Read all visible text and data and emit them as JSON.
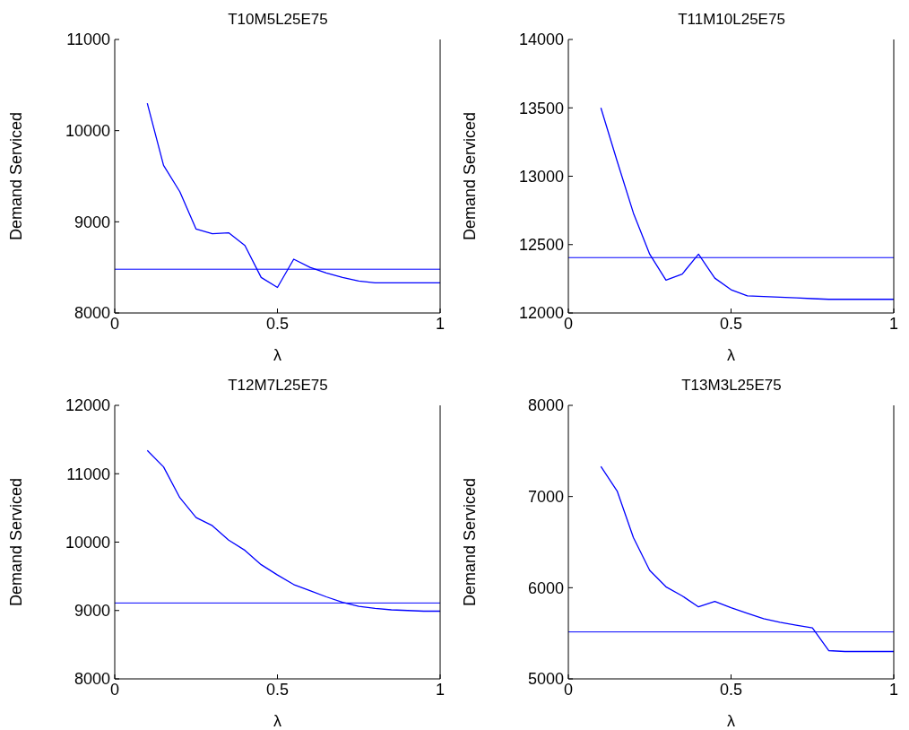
{
  "chart_data": [
    {
      "type": "line",
      "title": "T10M5L25E75",
      "xlabel": "λ",
      "ylabel": "Demand Serviced",
      "x": [
        0.1,
        0.15,
        0.2,
        0.25,
        0.3,
        0.35,
        0.4,
        0.45,
        0.5,
        0.55,
        0.6,
        0.65,
        0.7,
        0.75,
        0.8,
        0.85,
        0.9,
        0.95,
        1
      ],
      "series": [
        {
          "color": "#0000ff",
          "values": [
            10300,
            9620,
            9330,
            8920,
            8870,
            8880,
            8740,
            8390,
            8280,
            8590,
            8500,
            8440,
            8390,
            8350,
            8330,
            8330,
            8330,
            8330,
            8330
          ]
        }
      ],
      "ref_lines": [
        {
          "axis": "y",
          "value": 8480,
          "color": "#0000ff"
        }
      ],
      "xlim": [
        0,
        1
      ],
      "xticks": [
        0,
        0.5,
        1
      ],
      "ylim": [
        8000,
        11000
      ],
      "yticks": [
        8000,
        9000,
        10000,
        11000
      ],
      "grid": false,
      "legend": false,
      "marker": "none",
      "line_style": "solid"
    },
    {
      "type": "line",
      "title": "T11M10L25E75",
      "xlabel": "λ",
      "ylabel": "Demand Serviced",
      "x": [
        0.1,
        0.15,
        0.2,
        0.25,
        0.3,
        0.35,
        0.4,
        0.45,
        0.5,
        0.55,
        0.6,
        0.65,
        0.7,
        0.75,
        0.8,
        0.85,
        0.9,
        0.95,
        1
      ],
      "series": [
        {
          "color": "#0000ff",
          "values": [
            13500,
            13110,
            12730,
            12430,
            12240,
            12285,
            12430,
            12255,
            12170,
            12125,
            12120,
            12115,
            12110,
            12105,
            12100,
            12100,
            12100,
            12100,
            12100
          ]
        }
      ],
      "ref_lines": [
        {
          "axis": "y",
          "value": 12405,
          "color": "#0000ff"
        }
      ],
      "xlim": [
        0,
        1
      ],
      "xticks": [
        0,
        0.5,
        1
      ],
      "ylim": [
        12000,
        14000
      ],
      "yticks": [
        12000,
        12500,
        13000,
        13500,
        14000
      ],
      "grid": false,
      "legend": false,
      "marker": "none",
      "line_style": "solid"
    },
    {
      "type": "line",
      "title": "T12M7L25E75",
      "xlabel": "λ",
      "ylabel": "Demand Serviced",
      "x": [
        0.1,
        0.15,
        0.2,
        0.25,
        0.3,
        0.35,
        0.4,
        0.45,
        0.5,
        0.55,
        0.6,
        0.65,
        0.7,
        0.75,
        0.8,
        0.85,
        0.9,
        0.95,
        1
      ],
      "series": [
        {
          "color": "#0000ff",
          "values": [
            11340,
            11100,
            10650,
            10360,
            10240,
            10030,
            9880,
            9670,
            9520,
            9380,
            9290,
            9200,
            9120,
            9060,
            9030,
            9010,
            9000,
            8990,
            8990
          ]
        }
      ],
      "ref_lines": [
        {
          "axis": "y",
          "value": 9110,
          "color": "#0000ff"
        }
      ],
      "xlim": [
        0,
        1
      ],
      "xticks": [
        0,
        0.5,
        1
      ],
      "ylim": [
        8000,
        12000
      ],
      "yticks": [
        8000,
        9000,
        10000,
        11000,
        12000
      ],
      "grid": false,
      "legend": false,
      "marker": "none",
      "line_style": "solid"
    },
    {
      "type": "line",
      "title": "T13M3L25E75",
      "xlabel": "λ",
      "ylabel": "Demand Serviced",
      "x": [
        0.1,
        0.15,
        0.2,
        0.25,
        0.3,
        0.35,
        0.4,
        0.45,
        0.5,
        0.55,
        0.6,
        0.65,
        0.7,
        0.75,
        0.8,
        0.85,
        0.9,
        0.95,
        1
      ],
      "series": [
        {
          "color": "#0000ff",
          "values": [
            7330,
            7060,
            6550,
            6190,
            6010,
            5910,
            5790,
            5850,
            5780,
            5720,
            5660,
            5620,
            5590,
            5560,
            5310,
            5300,
            5300,
            5300,
            5300
          ]
        }
      ],
      "ref_lines": [
        {
          "axis": "y",
          "value": 5515,
          "color": "#0000ff"
        }
      ],
      "xlim": [
        0,
        1
      ],
      "xticks": [
        0,
        0.5,
        1
      ],
      "ylim": [
        5000,
        8000
      ],
      "yticks": [
        5000,
        6000,
        7000,
        8000
      ],
      "grid": false,
      "legend": false,
      "marker": "none",
      "line_style": "solid"
    }
  ]
}
